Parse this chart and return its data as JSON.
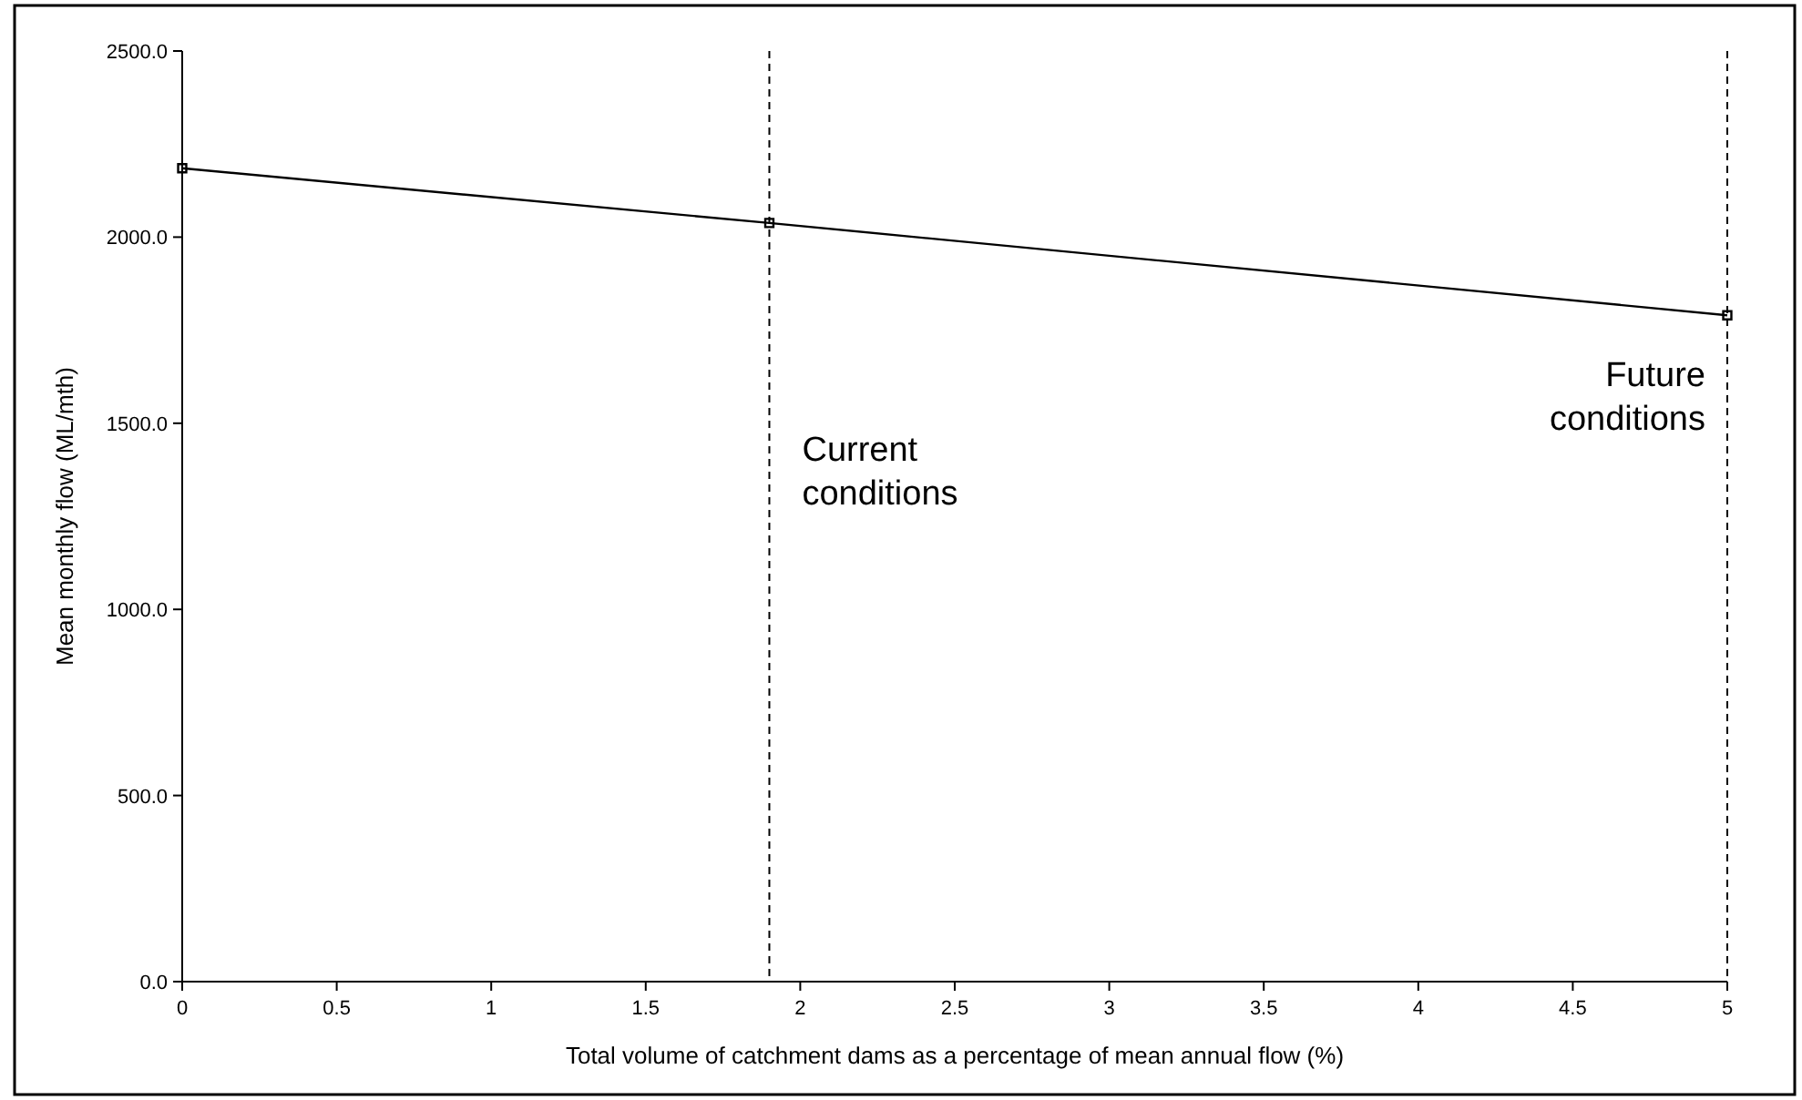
{
  "chart_data": {
    "type": "line",
    "xlabel": "Total volume of catchment dams as a percentage of mean annual flow (%)",
    "ylabel": "Mean monthly flow (ML/mth)",
    "x": [
      0,
      1.9,
      5
    ],
    "series": [
      {
        "color": "#000000",
        "values": [
          2185,
          2038,
          1790
        ]
      }
    ],
    "xlim": [
      0,
      5
    ],
    "xticks": [
      0,
      0.5,
      1,
      1.5,
      2,
      2.5,
      3,
      3.5,
      4,
      4.5,
      5
    ],
    "ylim": [
      0,
      2500
    ],
    "yticks": [
      {
        "value": 0,
        "label": "0.0"
      },
      {
        "value": 500,
        "label": "500.0"
      },
      {
        "value": 1000,
        "label": "1000.0"
      },
      {
        "value": 1500,
        "label": "1500.0"
      },
      {
        "value": 2000,
        "label": "2000.0"
      },
      {
        "value": 2500,
        "label": "2500.0"
      }
    ],
    "ref_lines": [
      {
        "axis": "x",
        "value": 1.9,
        "line_style": "dashed",
        "color": "#000000"
      },
      {
        "axis": "x",
        "value": 5,
        "line_style": "dashed",
        "color": "#000000"
      }
    ],
    "annotations": [
      {
        "text": "Current\nconditions",
        "x": 1.9,
        "y": 1400
      },
      {
        "text": "Future\nconditions",
        "x": 5,
        "y": 1600
      }
    ],
    "marker": "square",
    "line_style": "solid",
    "grid": false
  }
}
